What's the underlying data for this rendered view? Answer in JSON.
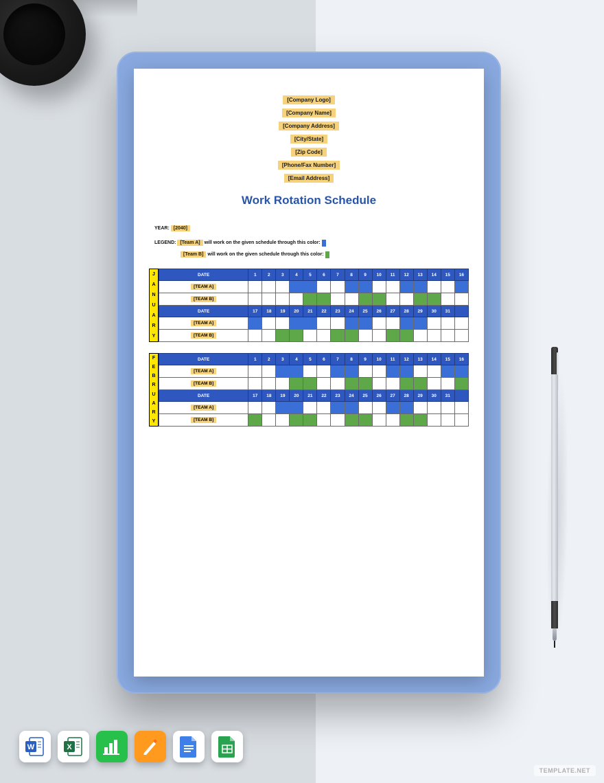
{
  "placeholders": {
    "logo": "[Company Logo]",
    "name": "[Company Name]",
    "address": "[Company Address]",
    "city": "[City/State]",
    "zip": "[Zip Code]",
    "phone": "[Phone/Fax Number]",
    "email": "[Email Address]"
  },
  "title": "Work Rotation Schedule",
  "year_label": "YEAR:",
  "year_value": "[2040]",
  "legend_label": "LEGEND:",
  "legend_team_a_ph": "[Team A]",
  "legend_team_b_ph": "[Team B]",
  "legend_text": "will work on the given schedule through this color:",
  "colors": {
    "placeholder_bg": "#f5d27b",
    "month_bg": "#ffe600",
    "header_bg": "#2e57c0",
    "team_a": "#3b6fd8",
    "team_b": "#5ea849",
    "title": "#2a55a6",
    "border": "#6a6a6a"
  },
  "date_label": "DATE",
  "team_a_label": "[TEAM A]",
  "team_b_label": "[TEAM B]",
  "days_1_16": [
    "1",
    "2",
    "3",
    "4",
    "5",
    "6",
    "7",
    "8",
    "9",
    "10",
    "11",
    "12",
    "13",
    "14",
    "15",
    "16"
  ],
  "days_17_31": [
    "17",
    "18",
    "19",
    "20",
    "21",
    "22",
    "23",
    "24",
    "25",
    "26",
    "27",
    "28",
    "29",
    "30",
    "31",
    ""
  ],
  "months": [
    {
      "letters": [
        "J",
        "A",
        "N",
        "U",
        "A",
        "R",
        "Y"
      ],
      "rows": [
        {
          "type": "header",
          "days": "days_1_16"
        },
        {
          "type": "team",
          "label": "team_a_label",
          "fills": [
            "",
            "",
            "",
            "b",
            "b",
            "",
            "",
            "b",
            "b",
            "",
            "",
            "b",
            "b",
            "",
            "",
            "b"
          ]
        },
        {
          "type": "team",
          "label": "team_b_label",
          "fills": [
            "",
            "",
            "",
            "",
            "g",
            "g",
            "",
            "",
            "g",
            "g",
            "",
            "",
            "g",
            "g",
            "",
            ""
          ]
        },
        {
          "type": "header",
          "days": "days_17_31"
        },
        {
          "type": "team",
          "label": "team_a_label",
          "fills": [
            "b",
            "",
            "",
            "b",
            "b",
            "",
            "",
            "b",
            "b",
            "",
            "",
            "b",
            "b",
            "",
            "",
            ""
          ]
        },
        {
          "type": "team",
          "label": "team_b_label",
          "fills": [
            "",
            "",
            "g",
            "g",
            "",
            "",
            "g",
            "g",
            "",
            "",
            "g",
            "g",
            "",
            "",
            "",
            ""
          ]
        }
      ]
    },
    {
      "letters": [
        "F",
        "E",
        "B",
        "R",
        "U",
        "A",
        "R",
        "Y"
      ],
      "rows": [
        {
          "type": "header",
          "days": "days_1_16"
        },
        {
          "type": "team",
          "label": "team_a_label",
          "fills": [
            "",
            "",
            "b",
            "b",
            "",
            "",
            "b",
            "b",
            "",
            "",
            "b",
            "b",
            "",
            "",
            "b",
            "b"
          ]
        },
        {
          "type": "team",
          "label": "team_b_label",
          "fills": [
            "",
            "",
            "",
            "g",
            "g",
            "",
            "",
            "g",
            "g",
            "",
            "",
            "g",
            "g",
            "",
            "",
            "g"
          ]
        },
        {
          "type": "header",
          "days": "days_17_31"
        },
        {
          "type": "team",
          "label": "team_a_label",
          "fills": [
            "",
            "",
            "b",
            "b",
            "",
            "",
            "b",
            "b",
            "",
            "",
            "b",
            "b",
            "",
            "",
            "",
            ""
          ]
        },
        {
          "type": "team",
          "label": "team_b_label",
          "fills": [
            "g",
            "",
            "",
            "g",
            "g",
            "",
            "",
            "g",
            "g",
            "",
            "",
            "g",
            "g",
            "",
            "",
            ""
          ]
        }
      ]
    }
  ],
  "watermark": "TEMPLATE.NET",
  "app_icons": [
    {
      "name": "word",
      "bg": "#ffffff",
      "accent": "#2a5fc1"
    },
    {
      "name": "excel",
      "bg": "#ffffff",
      "accent": "#1f7246"
    },
    {
      "name": "numbers",
      "bg": "#26c04a",
      "accent": "#ffffff"
    },
    {
      "name": "pages",
      "bg": "#ff9a1f",
      "accent": "#ffffff"
    },
    {
      "name": "gdocs",
      "bg": "#ffffff",
      "accent": "#3f7fe8"
    },
    {
      "name": "gsheets",
      "bg": "#ffffff",
      "accent": "#2aa351"
    }
  ]
}
